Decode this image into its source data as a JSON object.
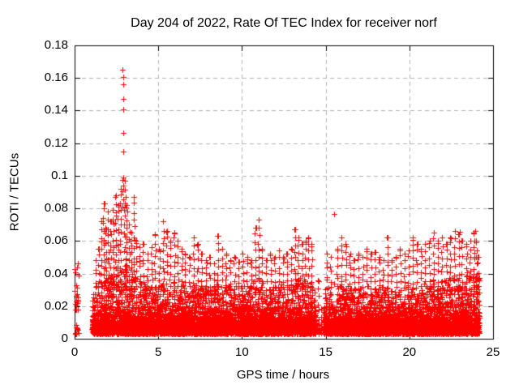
{
  "window": {
    "background": "#ffffff",
    "foreground": "#000000"
  },
  "chart_data": {
    "type": "scatter",
    "title": "Day 204 of 2022, Rate Of TEC Index for receiver norf",
    "xlabel": "GPS time / hours",
    "ylabel": "ROTI / TECUs",
    "xlim": [
      0,
      25
    ],
    "ylim": [
      0,
      0.18
    ],
    "xticks": {
      "values": [
        0,
        5,
        10,
        15,
        20,
        25
      ],
      "labels": [
        "0",
        "5",
        "10",
        "15",
        "20",
        "25"
      ]
    },
    "yticks": {
      "values": [
        0,
        0.02,
        0.04,
        0.06,
        0.08,
        0.1,
        0.12,
        0.14,
        0.16,
        0.18
      ],
      "labels": [
        "0",
        "0.02",
        "0.04",
        "0.06",
        "0.08",
        "0.1",
        "0.12",
        "0.14",
        "0.16",
        "0.18"
      ]
    },
    "grid": {
      "show": true,
      "style": "dashed",
      "color": "#b0b0b0"
    },
    "legend": {
      "show": false
    },
    "series": [
      {
        "name": "ROTI",
        "marker": "plus",
        "color": "#ff0000",
        "seed": 20420422,
        "baseline": {
          "step_hours": 0.013,
          "floor": 0.003,
          "scale": 0.0055
        },
        "early_cluster": {
          "t0": 0.0,
          "t1": 0.25,
          "n": 30,
          "vmax": 0.047
        },
        "coverage": [
          {
            "t0": 1.05,
            "t1": 14.42,
            "density": 1
          },
          {
            "t0": 14.42,
            "t1": 14.88,
            "density": 0.18
          },
          {
            "t0": 14.88,
            "t1": 24.18,
            "density": 1
          }
        ],
        "dense_top_envelope": [
          [
            0,
            0.02
          ],
          [
            1.05,
            0.024
          ],
          [
            1.5,
            0.03
          ],
          [
            2.0,
            0.034
          ],
          [
            2.5,
            0.038
          ],
          [
            3.0,
            0.04
          ],
          [
            3.5,
            0.034
          ],
          [
            4.0,
            0.03
          ],
          [
            5.0,
            0.028
          ],
          [
            6.0,
            0.03
          ],
          [
            7.0,
            0.029
          ],
          [
            8.0,
            0.028
          ],
          [
            9.0,
            0.029
          ],
          [
            10.0,
            0.028
          ],
          [
            11.0,
            0.031
          ],
          [
            12.0,
            0.028
          ],
          [
            13.0,
            0.031
          ],
          [
            13.8,
            0.034
          ],
          [
            14.42,
            0.026
          ],
          [
            14.65,
            0.018
          ],
          [
            14.88,
            0.026
          ],
          [
            15.5,
            0.029
          ],
          [
            16.0,
            0.028
          ],
          [
            17.0,
            0.027
          ],
          [
            18.0,
            0.027
          ],
          [
            19.0,
            0.026
          ],
          [
            20.0,
            0.028
          ],
          [
            21.0,
            0.029
          ],
          [
            22.0,
            0.031
          ],
          [
            23.0,
            0.033
          ],
          [
            23.8,
            0.035
          ],
          [
            24.18,
            0.033
          ]
        ],
        "bursts": [
          [
            1.25,
            0.048
          ],
          [
            1.45,
            0.055
          ],
          [
            1.6,
            0.072
          ],
          [
            1.75,
            0.083
          ],
          [
            1.85,
            0.068
          ],
          [
            2.0,
            0.078
          ],
          [
            2.15,
            0.072
          ],
          [
            2.3,
            0.079
          ],
          [
            2.45,
            0.088
          ],
          [
            2.6,
            0.082
          ],
          [
            2.75,
            0.092
          ],
          [
            3.0,
            0.097
          ],
          [
            3.1,
            0.082
          ],
          [
            3.25,
            0.07
          ],
          [
            3.4,
            0.065
          ],
          [
            3.55,
            0.087
          ],
          [
            3.7,
            0.06
          ],
          [
            3.9,
            0.056
          ],
          [
            4.1,
            0.058
          ],
          [
            4.35,
            0.052
          ],
          [
            4.6,
            0.056
          ],
          [
            4.8,
            0.064
          ],
          [
            5.05,
            0.055
          ],
          [
            5.3,
            0.072
          ],
          [
            5.5,
            0.066
          ],
          [
            5.7,
            0.06
          ],
          [
            5.95,
            0.065
          ],
          [
            6.15,
            0.06
          ],
          [
            6.4,
            0.055
          ],
          [
            6.6,
            0.052
          ],
          [
            6.85,
            0.05
          ],
          [
            7.1,
            0.062
          ],
          [
            7.35,
            0.058
          ],
          [
            7.6,
            0.052
          ],
          [
            7.85,
            0.048
          ],
          [
            8.1,
            0.05
          ],
          [
            8.35,
            0.046
          ],
          [
            8.55,
            0.063
          ],
          [
            8.8,
            0.055
          ],
          [
            9.05,
            0.052
          ],
          [
            9.3,
            0.048
          ],
          [
            9.55,
            0.05
          ],
          [
            9.8,
            0.047
          ],
          [
            10.05,
            0.052
          ],
          [
            10.3,
            0.05
          ],
          [
            10.55,
            0.048
          ],
          [
            10.8,
            0.068
          ],
          [
            11.0,
            0.073
          ],
          [
            11.2,
            0.055
          ],
          [
            11.45,
            0.048
          ],
          [
            11.7,
            0.052
          ],
          [
            11.95,
            0.05
          ],
          [
            12.2,
            0.054
          ],
          [
            12.45,
            0.05
          ],
          [
            12.7,
            0.052
          ],
          [
            12.95,
            0.055
          ],
          [
            13.15,
            0.067
          ],
          [
            13.35,
            0.062
          ],
          [
            13.6,
            0.058
          ],
          [
            13.8,
            0.06
          ],
          [
            13.95,
            0.062
          ],
          [
            14.15,
            0.058
          ],
          [
            14.55,
            0.036
          ],
          [
            15.05,
            0.052
          ],
          [
            15.3,
            0.05
          ],
          [
            15.7,
            0.055
          ],
          [
            15.95,
            0.062
          ],
          [
            16.2,
            0.058
          ],
          [
            16.45,
            0.052
          ],
          [
            16.7,
            0.048
          ],
          [
            16.95,
            0.052
          ],
          [
            17.2,
            0.05
          ],
          [
            17.45,
            0.055
          ],
          [
            17.7,
            0.052
          ],
          [
            17.95,
            0.053
          ],
          [
            18.2,
            0.05
          ],
          [
            18.45,
            0.048
          ],
          [
            18.7,
            0.062
          ],
          [
            18.95,
            0.048
          ],
          [
            19.2,
            0.05
          ],
          [
            19.45,
            0.055
          ],
          [
            19.7,
            0.052
          ],
          [
            19.95,
            0.054
          ],
          [
            20.2,
            0.062
          ],
          [
            20.45,
            0.058
          ],
          [
            20.7,
            0.055
          ],
          [
            20.95,
            0.058
          ],
          [
            21.2,
            0.06
          ],
          [
            21.45,
            0.065
          ],
          [
            21.7,
            0.06
          ],
          [
            21.95,
            0.062
          ],
          [
            22.2,
            0.058
          ],
          [
            22.45,
            0.062
          ],
          [
            22.7,
            0.066
          ],
          [
            22.95,
            0.064
          ],
          [
            23.15,
            0.06
          ],
          [
            23.4,
            0.058
          ],
          [
            23.65,
            0.06
          ],
          [
            23.85,
            0.065
          ],
          [
            24.0,
            0.06
          ],
          [
            24.1,
            0.05
          ]
        ],
        "peak_event": {
          "time_hours": 2.9,
          "max": 0.165,
          "points": [
            [
              2.88,
              0.165
            ],
            [
              2.9,
              0.1605
            ],
            [
              2.9,
              0.156
            ],
            [
              2.91,
              0.147
            ],
            [
              2.9,
              0.1405
            ],
            [
              2.89,
              0.1265
            ],
            [
              2.9,
              0.115
            ],
            [
              2.92,
              0.099
            ],
            [
              2.88,
              0.0975
            ],
            [
              2.9,
              0.094
            ],
            [
              2.87,
              0.0905
            ],
            [
              2.93,
              0.0855
            ],
            [
              2.85,
              0.081
            ],
            [
              2.95,
              0.079
            ]
          ]
        },
        "isolated_points": [
          [
            15.48,
            0.0765
          ],
          [
            23.0,
            0.0655
          ],
          [
            23.95,
            0.066
          ]
        ]
      }
    ]
  }
}
